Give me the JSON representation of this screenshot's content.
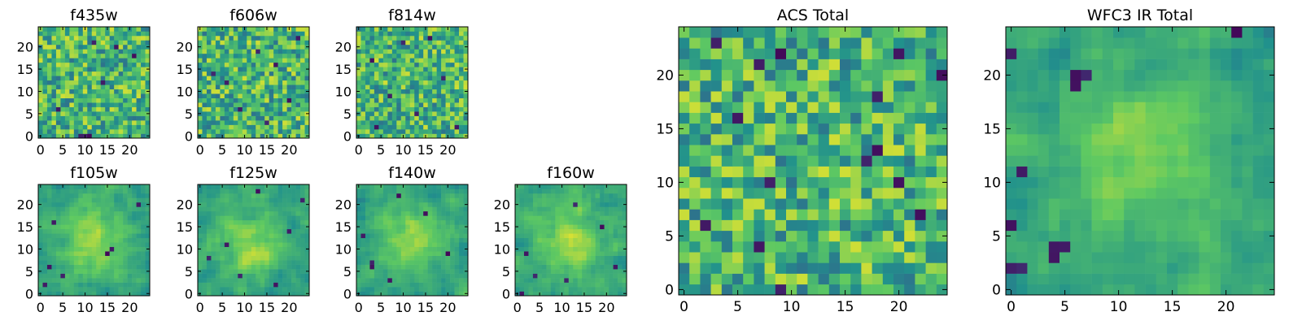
{
  "figure": {
    "background": "#ffffff",
    "colormap": "viridis",
    "colormap_stops": [
      "#440154",
      "#3b528b",
      "#21918c",
      "#5ec962",
      "#fde725"
    ]
  },
  "chart_data": [
    {
      "type": "heatmap",
      "title": "f435w",
      "xlabel": "",
      "ylabel": "",
      "grid_size": 25,
      "xlim": [
        -0.5,
        24.5
      ],
      "ylim": [
        -0.5,
        24.5
      ],
      "xticks": [
        0,
        5,
        10,
        15,
        20
      ],
      "yticks": [
        0,
        5,
        10,
        15,
        20
      ],
      "value_range": [
        0,
        1
      ],
      "texture": "noisy",
      "seed": 11,
      "dark_pixels": [
        [
          9,
          0
        ],
        [
          10,
          0
        ],
        [
          11,
          0
        ],
        [
          12,
          21
        ],
        [
          17,
          20
        ],
        [
          21,
          18
        ],
        [
          4,
          6
        ],
        [
          14,
          12
        ]
      ]
    },
    {
      "type": "heatmap",
      "title": "f606w",
      "xlabel": "",
      "ylabel": "",
      "grid_size": 25,
      "xlim": [
        -0.5,
        24.5
      ],
      "ylim": [
        -0.5,
        24.5
      ],
      "xticks": [
        0,
        5,
        10,
        15,
        20
      ],
      "yticks": [
        0,
        5,
        10,
        15,
        20
      ],
      "value_range": [
        0,
        1
      ],
      "texture": "noisy",
      "seed": 22,
      "dark_pixels": [
        [
          13,
          19
        ],
        [
          17,
          16
        ],
        [
          6,
          12
        ],
        [
          20,
          8
        ],
        [
          9,
          6
        ],
        [
          15,
          3
        ],
        [
          22,
          22
        ],
        [
          3,
          14
        ]
      ]
    },
    {
      "type": "heatmap",
      "title": "f814w",
      "xlabel": "",
      "ylabel": "",
      "grid_size": 25,
      "xlim": [
        -0.5,
        24.5
      ],
      "ylim": [
        -0.5,
        24.5
      ],
      "xticks": [
        0,
        5,
        10,
        15,
        20
      ],
      "yticks": [
        0,
        5,
        10,
        15,
        20
      ],
      "value_range": [
        0,
        1
      ],
      "texture": "noisy",
      "seed": 33,
      "dark_pixels": [
        [
          16,
          22
        ],
        [
          10,
          21
        ],
        [
          3,
          17
        ],
        [
          19,
          13
        ],
        [
          7,
          9
        ],
        [
          13,
          5
        ],
        [
          22,
          2
        ],
        [
          4,
          2
        ]
      ]
    },
    {
      "type": "heatmap",
      "title": "f105w",
      "xlabel": "",
      "ylabel": "",
      "grid_size": 25,
      "xlim": [
        -0.5,
        24.5
      ],
      "ylim": [
        -0.5,
        24.5
      ],
      "xticks": [
        0,
        5,
        10,
        15,
        20
      ],
      "yticks": [
        0,
        5,
        10,
        15,
        20
      ],
      "value_range": [
        0,
        1
      ],
      "texture": "smooth",
      "seed": 44,
      "dark_pixels": [
        [
          3,
          16
        ],
        [
          16,
          10
        ],
        [
          15,
          9
        ],
        [
          2,
          6
        ],
        [
          5,
          4
        ],
        [
          1,
          2
        ],
        [
          22,
          20
        ]
      ]
    },
    {
      "type": "heatmap",
      "title": "f125w",
      "xlabel": "",
      "ylabel": "",
      "grid_size": 25,
      "xlim": [
        -0.5,
        24.5
      ],
      "ylim": [
        -0.5,
        24.5
      ],
      "xticks": [
        0,
        5,
        10,
        15,
        20
      ],
      "yticks": [
        0,
        5,
        10,
        15,
        20
      ],
      "value_range": [
        0,
        1
      ],
      "texture": "smooth",
      "seed": 55,
      "dark_pixels": [
        [
          23,
          21
        ],
        [
          13,
          23
        ],
        [
          20,
          14
        ],
        [
          2,
          8
        ],
        [
          9,
          4
        ],
        [
          17,
          2
        ],
        [
          6,
          11
        ]
      ]
    },
    {
      "type": "heatmap",
      "title": "f140w",
      "xlabel": "",
      "ylabel": "",
      "grid_size": 25,
      "xlim": [
        -0.5,
        24.5
      ],
      "ylim": [
        -0.5,
        24.5
      ],
      "xticks": [
        0,
        5,
        10,
        15,
        20
      ],
      "yticks": [
        0,
        5,
        10,
        15,
        20
      ],
      "value_range": [
        0,
        1
      ],
      "texture": "smooth",
      "seed": 66,
      "dark_pixels": [
        [
          9,
          22
        ],
        [
          3,
          7
        ],
        [
          3,
          6
        ],
        [
          7,
          3
        ],
        [
          20,
          9
        ],
        [
          15,
          18
        ],
        [
          1,
          13
        ]
      ]
    },
    {
      "type": "heatmap",
      "title": "f160w",
      "xlabel": "",
      "ylabel": "",
      "grid_size": 25,
      "xlim": [
        -0.5,
        24.5
      ],
      "ylim": [
        -0.5,
        24.5
      ],
      "xticks": [
        0,
        5,
        10,
        15,
        20
      ],
      "yticks": [
        0,
        5,
        10,
        15,
        20
      ],
      "value_range": [
        0,
        1
      ],
      "texture": "smooth",
      "seed": 77,
      "dark_pixels": [
        [
          2,
          9
        ],
        [
          1,
          0
        ],
        [
          4,
          4
        ],
        [
          11,
          3
        ],
        [
          19,
          15
        ],
        [
          13,
          20
        ],
        [
          22,
          6
        ]
      ]
    },
    {
      "type": "heatmap",
      "title": "ACS Total",
      "xlabel": "",
      "ylabel": "",
      "grid_size": 25,
      "xlim": [
        -0.5,
        24.5
      ],
      "ylim": [
        -0.5,
        24.5
      ],
      "xticks": [
        0,
        5,
        10,
        15,
        20
      ],
      "yticks": [
        0,
        5,
        10,
        15,
        20
      ],
      "value_range": [
        0,
        1
      ],
      "texture": "noisy",
      "seed": 88,
      "dark_pixels": [
        [
          3,
          23
        ],
        [
          9,
          22
        ],
        [
          7,
          21
        ],
        [
          20,
          22
        ],
        [
          24,
          20
        ],
        [
          18,
          18
        ],
        [
          5,
          16
        ],
        [
          18,
          13
        ],
        [
          17,
          12
        ],
        [
          8,
          10
        ],
        [
          22,
          7
        ],
        [
          7,
          4
        ],
        [
          9,
          0
        ],
        [
          20,
          10
        ],
        [
          2,
          6
        ]
      ]
    },
    {
      "type": "heatmap",
      "title": "WFC3 IR Total",
      "xlabel": "",
      "ylabel": "",
      "grid_size": 25,
      "xlim": [
        -0.5,
        24.5
      ],
      "ylim": [
        -0.5,
        24.5
      ],
      "xticks": [
        0,
        5,
        10,
        15,
        20
      ],
      "yticks": [
        0,
        5,
        10,
        15,
        20
      ],
      "value_range": [
        0,
        1
      ],
      "texture": "smooth",
      "seed": 99,
      "dark_pixels": [
        [
          21,
          24
        ],
        [
          0,
          22
        ],
        [
          6,
          20
        ],
        [
          7,
          20
        ],
        [
          6,
          19
        ],
        [
          1,
          11
        ],
        [
          4,
          4
        ],
        [
          5,
          4
        ],
        [
          4,
          3
        ],
        [
          0,
          2
        ],
        [
          1,
          2
        ],
        [
          0,
          6
        ]
      ]
    }
  ]
}
